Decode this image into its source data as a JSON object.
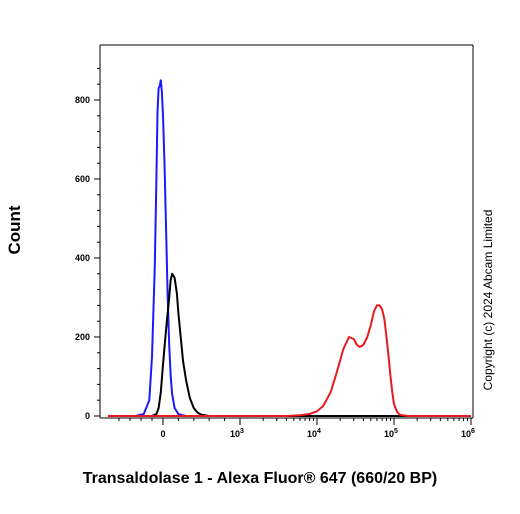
{
  "chart_data": {
    "type": "line",
    "title": "",
    "xlabel": "Transaldolase 1 - Alexa Fluor® 647 (660/20 BP)",
    "ylabel": "Count",
    "x_scale": "biexponential",
    "ylim": [
      0,
      900
    ],
    "y_ticks": [
      0,
      200,
      400,
      600,
      800
    ],
    "x_ticks": [
      {
        "value": 0,
        "label": "0",
        "exponent": ""
      },
      {
        "value": 1000,
        "label": "10",
        "exponent": "3"
      },
      {
        "value": 10000,
        "label": "10",
        "exponent": "4"
      },
      {
        "value": 100000,
        "label": "10",
        "exponent": "5"
      },
      {
        "value": 1000000,
        "label": "10",
        "exponent": "6"
      }
    ],
    "grid": false,
    "legend": "none",
    "series": [
      {
        "color": "#1a1aff",
        "x": [
          -1000,
          -500,
          -350,
          -250,
          -200,
          -150,
          -120,
          -100,
          -80,
          -60,
          -40,
          -20,
          0,
          20,
          40,
          60,
          80,
          100,
          120,
          150,
          200,
          250,
          300,
          400,
          600,
          1000000
        ],
        "y": [
          0,
          0,
          5,
          40,
          150,
          380,
          600,
          770,
          830,
          835,
          850,
          820,
          760,
          640,
          470,
          310,
          180,
          100,
          55,
          20,
          5,
          2,
          0,
          0,
          0,
          0
        ]
      },
      {
        "color": "#000000",
        "x": [
          -1000,
          -200,
          -120,
          -80,
          -40,
          0,
          40,
          80,
          100,
          120,
          150,
          180,
          200,
          230,
          260,
          300,
          350,
          400,
          450,
          500,
          600,
          800,
          1000000
        ],
        "y": [
          0,
          0,
          5,
          20,
          60,
          130,
          220,
          300,
          345,
          360,
          350,
          310,
          260,
          200,
          140,
          90,
          45,
          20,
          8,
          3,
          0,
          0,
          0
        ]
      },
      {
        "color": "#e8191f",
        "x": [
          -1000,
          4000,
          6000,
          8000,
          10000,
          12000,
          15000,
          18000,
          22000,
          26000,
          30000,
          33000,
          36000,
          40000,
          45000,
          50000,
          55000,
          60000,
          65000,
          70000,
          75000,
          80000,
          85000,
          90000,
          95000,
          100000,
          110000,
          120000,
          150000,
          1000000
        ],
        "y": [
          0,
          0,
          2,
          5,
          12,
          25,
          60,
          110,
          170,
          200,
          195,
          180,
          175,
          180,
          200,
          230,
          265,
          280,
          280,
          270,
          245,
          200,
          150,
          100,
          60,
          30,
          10,
          3,
          0,
          0
        ]
      }
    ]
  }
}
